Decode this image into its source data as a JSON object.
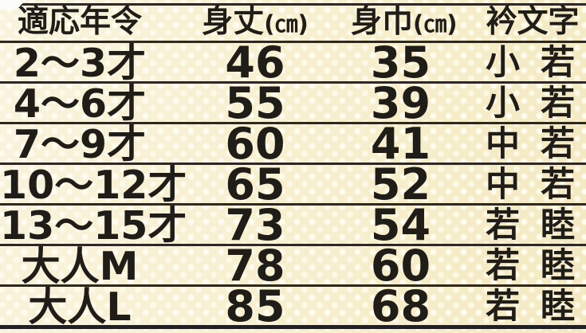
{
  "table": {
    "header": {
      "age": "適応年令",
      "body_length": "身丈",
      "body_width": "身巾",
      "unit": "(㎝)",
      "collar": "衿文字"
    },
    "rows": [
      {
        "age": "2〜3才",
        "length": "46",
        "width": "35",
        "collar_left": "小",
        "collar_right": "若"
      },
      {
        "age": "4〜6才",
        "length": "55",
        "width": "39",
        "collar_left": "小",
        "collar_right": "若"
      },
      {
        "age": "7〜9才",
        "length": "60",
        "width": "41",
        "collar_left": "中",
        "collar_right": "若"
      },
      {
        "age": "10〜12才",
        "length": "65",
        "width": "52",
        "collar_left": "中",
        "collar_right": "若"
      },
      {
        "age": "13〜15才",
        "length": "73",
        "width": "54",
        "collar_left": "若",
        "collar_right": "睦"
      },
      {
        "age": "大人M",
        "length": "78",
        "width": "60",
        "collar_left": "若",
        "collar_right": "睦"
      },
      {
        "age": "大人L",
        "length": "85",
        "width": "68",
        "collar_left": "若",
        "collar_right": "睦"
      }
    ]
  },
  "chart_data": {
    "type": "table",
    "title": "",
    "columns": [
      "適応年令",
      "身丈(㎝)",
      "身巾(㎝)",
      "衿文字"
    ],
    "rows": [
      [
        "2〜3才",
        46,
        35,
        "小 若"
      ],
      [
        "4〜6才",
        55,
        39,
        "小 若"
      ],
      [
        "7〜9才",
        60,
        41,
        "中 若"
      ],
      [
        "10〜12才",
        65,
        52,
        "中 若"
      ],
      [
        "13〜15才",
        73,
        54,
        "若 睦"
      ],
      [
        "大人M",
        78,
        60,
        "若 睦"
      ],
      [
        "大人L",
        85,
        68,
        "若 睦"
      ]
    ]
  },
  "colors": {
    "background": "#f7f0d2",
    "dot": "#fffef3",
    "rule_line": "#2e2722",
    "text": "#201c18"
  }
}
